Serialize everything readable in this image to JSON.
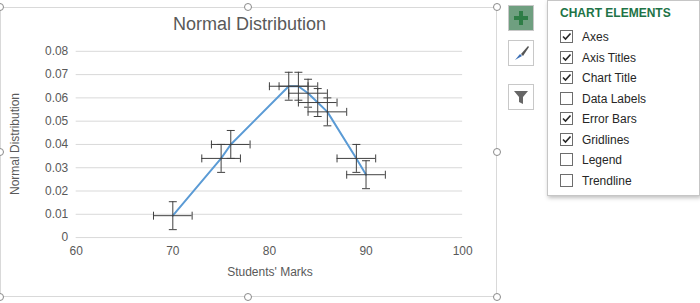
{
  "chart_data": {
    "type": "line",
    "title": "Normal Distribution",
    "x_label": "Students' Marks",
    "y_label": "Normal Distribution",
    "x": [
      70,
      75,
      76,
      82,
      83,
      84,
      85,
      86,
      89,
      90
    ],
    "series": [
      {
        "color": "#5b9bd5",
        "marker": "none",
        "values": [
          0.0094,
          0.034,
          0.04,
          0.065,
          0.065,
          0.062,
          0.058,
          0.054,
          0.034,
          0.027
        ],
        "x_errors": [
          2,
          2,
          2,
          2,
          2,
          2,
          2,
          2,
          2,
          2
        ],
        "y_errors": [
          0.006,
          0.006,
          0.006,
          0.006,
          0.006,
          0.006,
          0.006,
          0.006,
          0.006,
          0.006
        ]
      }
    ],
    "xlim": [
      60,
      100
    ],
    "xticks": [
      60,
      70,
      80,
      90,
      100
    ],
    "ylim": [
      0,
      0.08
    ],
    "yticks": [
      0,
      0.01,
      0.02,
      0.03,
      0.04,
      0.05,
      0.06,
      0.07,
      0.08
    ],
    "grid": true
  },
  "chart_elements": {
    "title": "CHART ELEMENTS",
    "items": [
      {
        "label": "Axes",
        "checked": true
      },
      {
        "label": "Axis Titles",
        "checked": true
      },
      {
        "label": "Chart Title",
        "checked": true
      },
      {
        "label": "Data Labels",
        "checked": false
      },
      {
        "label": "Error Bars",
        "checked": true
      },
      {
        "label": "Gridlines",
        "checked": true
      },
      {
        "label": "Legend",
        "checked": false
      },
      {
        "label": "Trendline",
        "checked": false
      }
    ]
  }
}
